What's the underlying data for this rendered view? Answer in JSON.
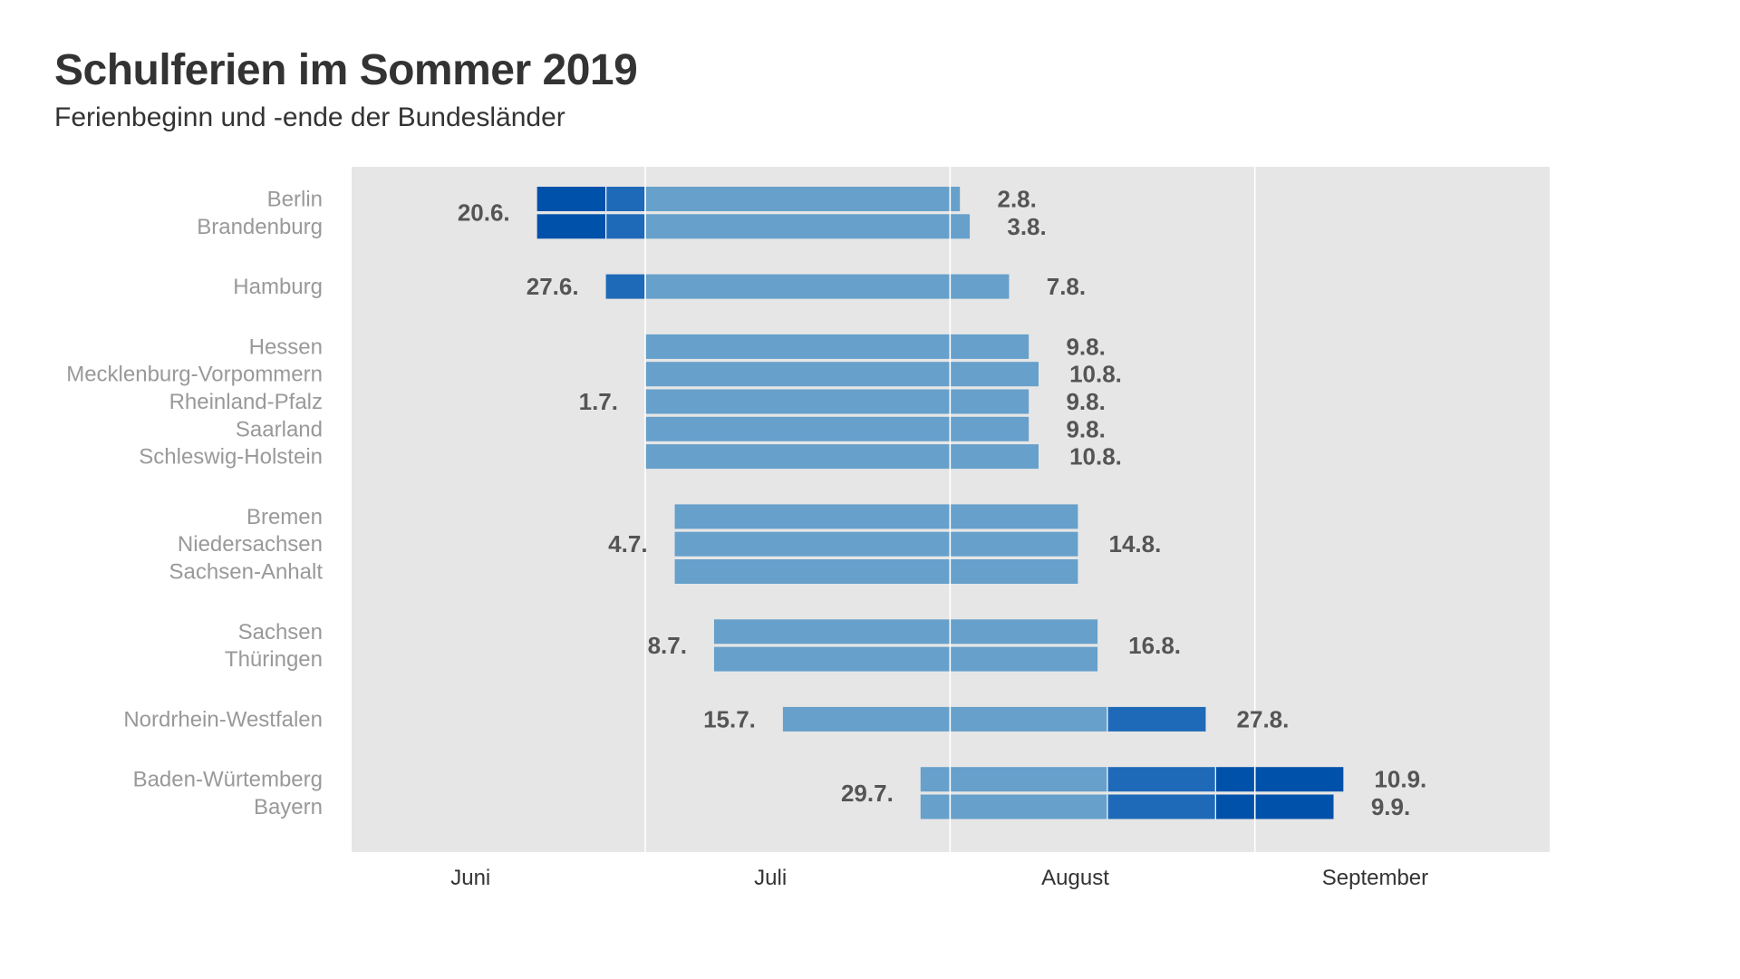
{
  "title": "Schulferien im Sommer 2019",
  "subtitle": "Ferienbeginn und -ende der Bundesländer",
  "colors": {
    "panel": "#e6e6e6",
    "bar_light": "#66a0cb",
    "bar_mid": "#1f6ab8",
    "bar_dark": "#0051aa",
    "separator": "#ffffff",
    "state_label": "#999999",
    "date_label": "#555555",
    "month_label": "#333333"
  },
  "chart_data": {
    "type": "gantt",
    "year": 2019,
    "x_axis_labels": [
      "Juni",
      "Juli",
      "August",
      "September"
    ],
    "gridline_dates": [
      "2019-07-01",
      "2019-08-01",
      "2019-09-01"
    ],
    "shade_periods": [
      {
        "start": "2019-06-20",
        "end": "2019-06-26",
        "level": "dark"
      },
      {
        "start": "2019-06-27",
        "end": "2019-06-30",
        "level": "mid"
      },
      {
        "start": "2019-07-01",
        "end": "2019-08-16",
        "level": "light"
      },
      {
        "start": "2019-08-17",
        "end": "2019-08-27",
        "level": "mid"
      },
      {
        "start": "2019-08-28",
        "end": "2019-09-10",
        "level": "dark"
      }
    ],
    "groups": [
      {
        "start_label": "20.6.",
        "states": [
          {
            "name": "Berlin",
            "start": "2019-06-20",
            "end": "2019-08-02",
            "end_label": "2.8."
          },
          {
            "name": "Brandenburg",
            "start": "2019-06-20",
            "end": "2019-08-03",
            "end_label": "3.8."
          }
        ]
      },
      {
        "start_label": "27.6.",
        "states": [
          {
            "name": "Hamburg",
            "start": "2019-06-27",
            "end": "2019-08-07",
            "end_label": "7.8."
          }
        ]
      },
      {
        "start_label": "1.7.",
        "states": [
          {
            "name": "Hessen",
            "start": "2019-07-01",
            "end": "2019-08-09",
            "end_label": "9.8."
          },
          {
            "name": "Mecklenburg-Vorpommern",
            "start": "2019-07-01",
            "end": "2019-08-10",
            "end_label": "10.8."
          },
          {
            "name": "Rheinland-Pfalz",
            "start": "2019-07-01",
            "end": "2019-08-09",
            "end_label": "9.8."
          },
          {
            "name": "Saarland",
            "start": "2019-07-01",
            "end": "2019-08-09",
            "end_label": "9.8."
          },
          {
            "name": "Schleswig-Holstein",
            "start": "2019-07-01",
            "end": "2019-08-10",
            "end_label": "10.8."
          }
        ]
      },
      {
        "start_label": "4.7.",
        "end_label": "14.8.",
        "states": [
          {
            "name": "Bremen",
            "start": "2019-07-04",
            "end": "2019-08-14"
          },
          {
            "name": "Niedersachsen",
            "start": "2019-07-04",
            "end": "2019-08-14"
          },
          {
            "name": "Sachsen-Anhalt",
            "start": "2019-07-04",
            "end": "2019-08-14"
          }
        ]
      },
      {
        "start_label": "8.7.",
        "end_label": "16.8.",
        "states": [
          {
            "name": "Sachsen",
            "start": "2019-07-08",
            "end": "2019-08-16"
          },
          {
            "name": "Thüringen",
            "start": "2019-07-08",
            "end": "2019-08-16"
          }
        ]
      },
      {
        "start_label": "15.7.",
        "states": [
          {
            "name": "Nordrhein-Westfalen",
            "start": "2019-07-15",
            "end": "2019-08-27",
            "end_label": "27.8."
          }
        ]
      },
      {
        "start_label": "29.7.",
        "states": [
          {
            "name": "Baden-Würtemberg",
            "start": "2019-07-29",
            "end": "2019-09-10",
            "end_label": "10.9."
          },
          {
            "name": "Bayern",
            "start": "2019-07-29",
            "end": "2019-09-09",
            "end_label": "9.9."
          }
        ]
      }
    ]
  }
}
